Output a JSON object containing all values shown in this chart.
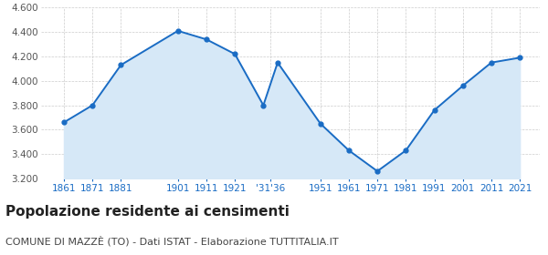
{
  "years": [
    1861,
    1871,
    1881,
    1901,
    1911,
    1921,
    1931,
    1936,
    1951,
    1961,
    1971,
    1981,
    1991,
    2001,
    2011,
    2021
  ],
  "population": [
    3660,
    3800,
    4130,
    4410,
    4340,
    4220,
    3800,
    4150,
    3650,
    3430,
    3260,
    3430,
    3760,
    3960,
    4150,
    4190
  ],
  "line_color": "#1a6cc4",
  "fill_color": "#d6e8f7",
  "marker": "o",
  "marker_size": 3.5,
  "ylim": [
    3200,
    4600
  ],
  "yticks": [
    3200,
    3400,
    3600,
    3800,
    4000,
    4200,
    4400,
    4600
  ],
  "title": "Popolazione residente ai censimenti",
  "subtitle": "COMUNE DI MAZZÈ (TO) - Dati ISTAT - Elaborazione TUTTITALIA.IT",
  "title_fontsize": 11,
  "subtitle_fontsize": 8,
  "title_color": "#222222",
  "subtitle_color": "#444444",
  "tick_label_color": "#1a6cc4",
  "ytick_label_color": "#555555",
  "grid_color": "#cccccc",
  "background_color": "#ffffff",
  "xtick_positions": [
    1861,
    1871,
    1881,
    1901,
    1911,
    1921,
    1933.5,
    1951,
    1961,
    1971,
    1981,
    1991,
    2001,
    2011,
    2021
  ],
  "xtick_labels": [
    "1861",
    "1871",
    "1881",
    "1901",
    "1911",
    "1921",
    "'31'36",
    "1951",
    "1961",
    "1971",
    "1981",
    "1991",
    "2001",
    "2011",
    "2021"
  ]
}
